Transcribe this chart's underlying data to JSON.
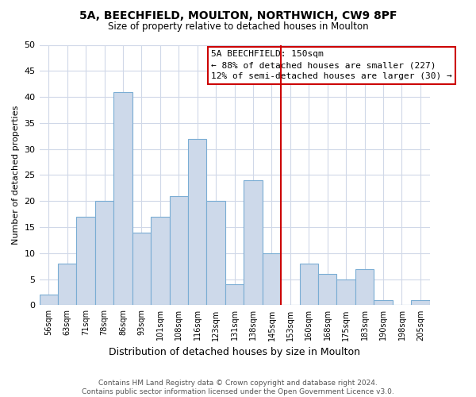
{
  "title": "5A, BEECHFIELD, MOULTON, NORTHWICH, CW9 8PF",
  "subtitle": "Size of property relative to detached houses in Moulton",
  "xlabel": "Distribution of detached houses by size in Moulton",
  "ylabel": "Number of detached properties",
  "bar_labels": [
    "56sqm",
    "63sqm",
    "71sqm",
    "78sqm",
    "86sqm",
    "93sqm",
    "101sqm",
    "108sqm",
    "116sqm",
    "123sqm",
    "131sqm",
    "138sqm",
    "145sqm",
    "153sqm",
    "160sqm",
    "168sqm",
    "175sqm",
    "183sqm",
    "190sqm",
    "198sqm",
    "205sqm"
  ],
  "bar_values": [
    2,
    8,
    17,
    20,
    41,
    14,
    17,
    21,
    32,
    20,
    4,
    24,
    10,
    0,
    8,
    6,
    5,
    7,
    1,
    0,
    1
  ],
  "bar_color": "#cdd9ea",
  "bar_edge_color": "#7aadd4",
  "vline_x_index": 13,
  "vline_color": "#cc0000",
  "annotation_title": "5A BEECHFIELD: 150sqm",
  "annotation_line1": "← 88% of detached houses are smaller (227)",
  "annotation_line2": "12% of semi-detached houses are larger (30) →",
  "annotation_box_color": "#ffffff",
  "annotation_box_edge_color": "#cc0000",
  "ylim": [
    0,
    50
  ],
  "yticks": [
    0,
    5,
    10,
    15,
    20,
    25,
    30,
    35,
    40,
    45,
    50
  ],
  "footer_line1": "Contains HM Land Registry data © Crown copyright and database right 2024.",
  "footer_line2": "Contains public sector information licensed under the Open Government Licence v3.0.",
  "bg_color": "#ffffff",
  "grid_color": "#d0d8e8"
}
